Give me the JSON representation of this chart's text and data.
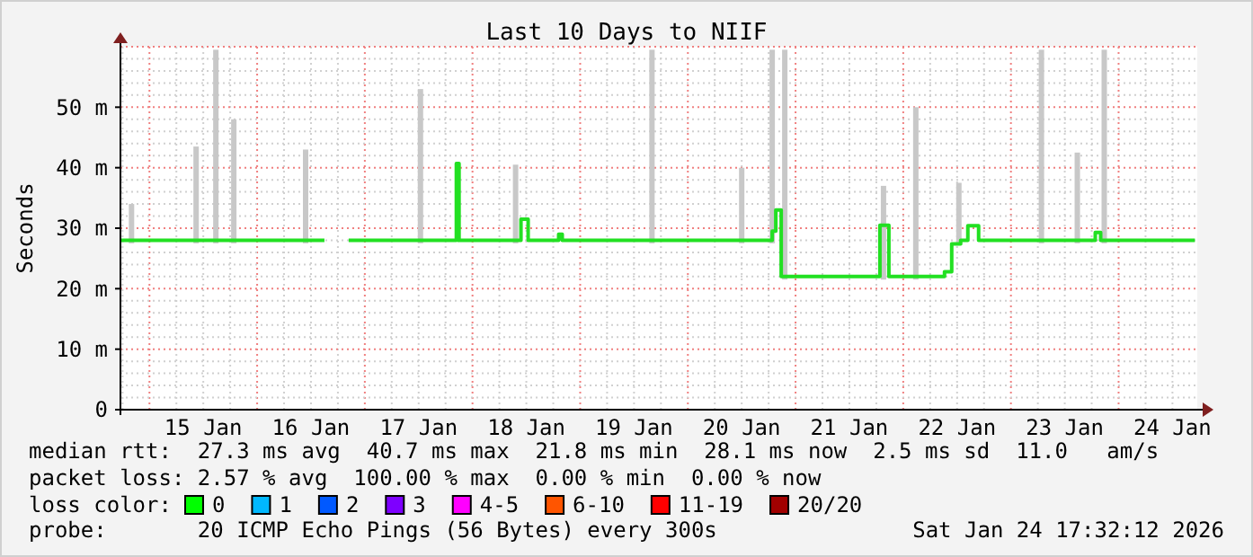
{
  "chart_data": {
    "type": "step",
    "title": "Last 10 Days to NIIF",
    "ylabel": "Seconds",
    "xlim": [
      "2026-01-14T17:32",
      "2026-01-24T17:32"
    ],
    "xticks": [
      {
        "value": "2026-01-15T12:00",
        "label": "15 Jan"
      },
      {
        "value": "2026-01-16T12:00",
        "label": "16 Jan"
      },
      {
        "value": "2026-01-17T12:00",
        "label": "17 Jan"
      },
      {
        "value": "2026-01-18T12:00",
        "label": "18 Jan"
      },
      {
        "value": "2026-01-19T12:00",
        "label": "19 Jan"
      },
      {
        "value": "2026-01-20T12:00",
        "label": "20 Jan"
      },
      {
        "value": "2026-01-21T12:00",
        "label": "21 Jan"
      },
      {
        "value": "2026-01-22T12:00",
        "label": "22 Jan"
      },
      {
        "value": "2026-01-23T12:00",
        "label": "23 Jan"
      },
      {
        "value": "2026-01-24T12:00",
        "label": "24 Jan"
      }
    ],
    "ylim": [
      0,
      60
    ],
    "yticks": [
      0,
      {
        "value": 10,
        "label": "10 m"
      },
      {
        "value": 20,
        "label": "20 m"
      },
      {
        "value": 30,
        "label": "30 m"
      },
      {
        "value": 40,
        "label": "40 m"
      },
      {
        "value": 50,
        "label": "50 m"
      }
    ],
    "grid": true,
    "series": [
      {
        "type": "bar",
        "color": "#c8c8c8",
        "x": [
          "2026-01-14T20:00",
          "2026-01-15T10:24",
          "2026-01-15T14:48",
          "2026-01-15T18:48",
          "2026-01-16T10:48",
          "2026-01-17T12:24",
          "2026-01-18T09:36",
          "2026-01-19T16:00",
          "2026-01-20T12:00",
          "2026-01-20T18:48",
          "2026-01-20T21:36",
          "2026-01-21T19:36",
          "2026-01-22T02:48",
          "2026-01-22T12:24",
          "2026-01-23T06:48",
          "2026-01-23T14:48",
          "2026-01-23T20:48"
        ],
        "base": [
          27.5,
          27.5,
          27.5,
          27.5,
          27.5,
          27.5,
          27.5,
          27.5,
          27.5,
          27.5,
          21.5,
          21.5,
          21.5,
          27.5,
          27.5,
          27.5,
          27.5
        ],
        "values": [
          6.5,
          16,
          32,
          20.5,
          15.5,
          25.5,
          13,
          32,
          12.5,
          32,
          38,
          15.5,
          28.5,
          10,
          32,
          15,
          32
        ]
      },
      {
        "color": "#22e022",
        "x": [
          "2026-01-14T17:32",
          "2026-01-16T15:00",
          "2026-01-16T15:12",
          "2026-01-16T20:24",
          "2026-01-17T20:24",
          "2026-01-17T21:00",
          "2026-01-18T10:48",
          "2026-01-18T12:24",
          "2026-01-18T19:12",
          "2026-01-18T20:00",
          "2026-01-20T18:48",
          "2026-01-20T19:36",
          "2026-01-20T20:48",
          "2026-01-21T18:48",
          "2026-01-21T20:48",
          "2026-01-22T09:12",
          "2026-01-22T10:48",
          "2026-01-22T12:48",
          "2026-01-22T14:24",
          "2026-01-22T16:48",
          "2026-01-23T18:48",
          "2026-01-23T20:00",
          "2026-01-24T17:00"
        ],
        "values": [
          28,
          28,
          null,
          28,
          40.7,
          28,
          31.5,
          28,
          29,
          28,
          29.5,
          33,
          22,
          30.5,
          22,
          22.8,
          27.4,
          28,
          30.4,
          28,
          29.3,
          28,
          28
        ]
      }
    ],
    "annotations": [
      "median rtt:  27.3 ms avg  40.7 ms max  21.8 ms min  28.1 ms now  2.5 ms sd  11.0   am/s",
      "packet loss: 2.57 % avg  100.00 % max  0.00 % min  0.00 % now",
      "loss color:",
      "0",
      "1",
      "2",
      "3",
      "4-5",
      "6-10",
      "11-19",
      "20/20",
      "probe:       20 ICMP Echo Pings (56 Bytes) every 300s",
      "Sat Jan 24 17:32:12 2026"
    ]
  }
}
